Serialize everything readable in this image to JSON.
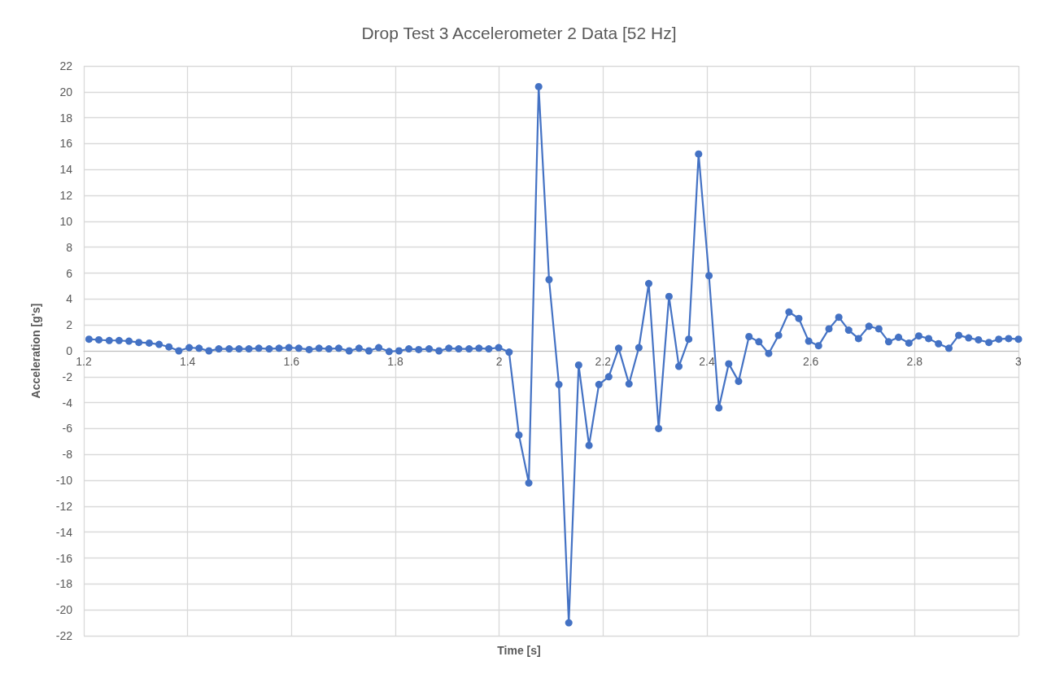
{
  "chart_data": {
    "type": "line",
    "title": "Drop Test 3 Accelerometer 2 Data [52 Hz]",
    "xlabel": "Time [s]",
    "ylabel": "Acceleration [g's]",
    "x": [
      1.21,
      1.229,
      1.249,
      1.268,
      1.287,
      1.306,
      1.326,
      1.345,
      1.364,
      1.383,
      1.403,
      1.422,
      1.441,
      1.46,
      1.48,
      1.499,
      1.518,
      1.537,
      1.557,
      1.576,
      1.595,
      1.614,
      1.634,
      1.653,
      1.672,
      1.691,
      1.711,
      1.73,
      1.749,
      1.768,
      1.788,
      1.807,
      1.826,
      1.845,
      1.865,
      1.884,
      1.903,
      1.922,
      1.942,
      1.961,
      1.98,
      1.999,
      2.019,
      2.038,
      2.057,
      2.076,
      2.096,
      2.115,
      2.134,
      2.153,
      2.173,
      2.192,
      2.211,
      2.23,
      2.25,
      2.269,
      2.288,
      2.307,
      2.327,
      2.346,
      2.365,
      2.384,
      2.404,
      2.423,
      2.442,
      2.461,
      2.481,
      2.5,
      2.519,
      2.538,
      2.558,
      2.577,
      2.596,
      2.615,
      2.635,
      2.654,
      2.673,
      2.692,
      2.712,
      2.731,
      2.75,
      2.769,
      2.789,
      2.808,
      2.827,
      2.846,
      2.866,
      2.885,
      2.904,
      2.923,
      2.943,
      2.962,
      2.981,
      3.0
    ],
    "series": [
      {
        "color": "#4472c4",
        "values": [
          0.9,
          0.85,
          0.8,
          0.8,
          0.75,
          0.65,
          0.6,
          0.5,
          0.3,
          0.0,
          0.25,
          0.2,
          0.0,
          0.15,
          0.15,
          0.15,
          0.15,
          0.2,
          0.15,
          0.2,
          0.25,
          0.2,
          0.1,
          0.2,
          0.15,
          0.2,
          0.0,
          0.2,
          0.0,
          0.25,
          -0.05,
          0.0,
          0.15,
          0.1,
          0.15,
          0.0,
          0.2,
          0.15,
          0.15,
          0.2,
          0.15,
          0.25,
          -0.1,
          -6.5,
          -10.2,
          20.4,
          5.5,
          -2.6,
          -21,
          -1.1,
          -7.3,
          -2.6,
          -2.0,
          0.2,
          -2.55,
          0.25,
          5.2,
          -6.0,
          4.2,
          -1.2,
          0.9,
          15.2,
          5.8,
          -4.4,
          -1.0,
          -2.35,
          1.1,
          0.7,
          -0.2,
          1.2,
          3.0,
          2.5,
          0.75,
          0.4,
          1.7,
          2.6,
          1.6,
          0.95,
          1.9,
          1.7,
          0.7,
          1.05,
          0.6,
          1.15,
          0.95,
          0.55,
          0.2,
          1.2,
          1.0,
          0.85,
          0.65,
          0.9,
          0.95,
          0.9
        ]
      }
    ],
    "xlim": [
      1.2,
      3
    ],
    "xticks": [
      1.2,
      1.4,
      1.6,
      1.8,
      2,
      2.2,
      2.4,
      2.6,
      2.8,
      3
    ],
    "ylim": [
      -22,
      22
    ],
    "yticks": [
      -22,
      -20,
      -18,
      -16,
      -14,
      -12,
      -10,
      -8,
      -6,
      -4,
      -2,
      0,
      2,
      4,
      6,
      8,
      10,
      12,
      14,
      16,
      18,
      20,
      22
    ],
    "grid": true,
    "marker": "circle",
    "line_style": "solid"
  }
}
